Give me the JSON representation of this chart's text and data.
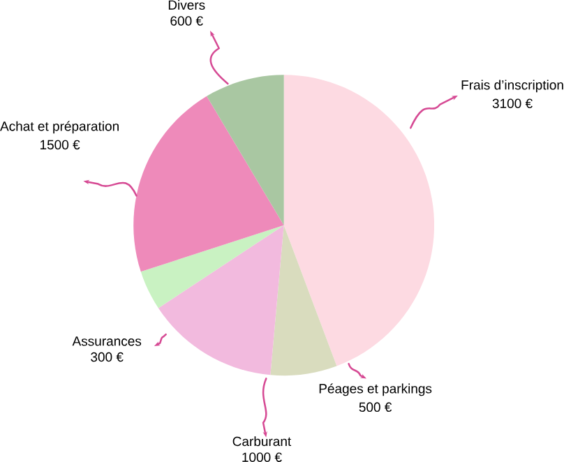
{
  "chart_data": {
    "type": "pie",
    "categories": [
      "Frais d’inscription",
      "Péages et parkings",
      "Carburant",
      "Assurances",
      "Achat et préparation",
      "Divers"
    ],
    "values": [
      3100,
      500,
      1000,
      300,
      1500,
      600
    ],
    "value_labels": [
      "3100 €",
      "500 €",
      "1000 €",
      "300 €",
      "1500 €",
      "600 €"
    ],
    "colors": [
      "#fddae2",
      "#d9dcbe",
      "#f2bade",
      "#c9f2c2",
      "#ee8aba",
      "#a9c7a2"
    ]
  }
}
